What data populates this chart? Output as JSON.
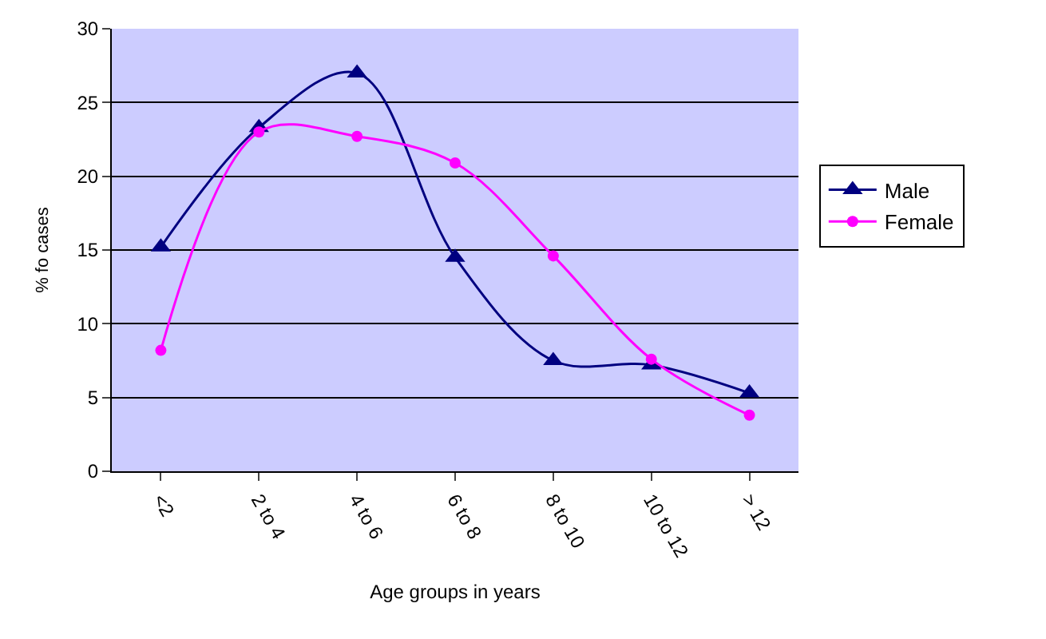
{
  "chart_data": {
    "type": "line",
    "xlabel": "Age groups in years",
    "ylabel": "% fo cases",
    "categories": [
      "<2",
      "2 to 4",
      "4 to 6",
      "6 to 8",
      "8 to 10",
      "10 to 12",
      "> 12"
    ],
    "series": [
      {
        "name": "Male",
        "color": "#000080",
        "marker": "triangle",
        "values": [
          15.2,
          23.3,
          27.0,
          14.5,
          7.5,
          7.2,
          5.3
        ]
      },
      {
        "name": "Female",
        "color": "#ff00ff",
        "marker": "circle",
        "values": [
          8.2,
          23.0,
          22.7,
          20.9,
          14.6,
          7.6,
          3.8
        ]
      }
    ],
    "ylim": [
      0,
      30
    ],
    "yticks": [
      0,
      5,
      10,
      15,
      20,
      25,
      30
    ],
    "grid": "y",
    "legend": "right"
  }
}
